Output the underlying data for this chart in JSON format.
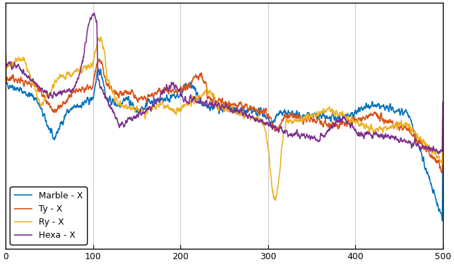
{
  "title": "",
  "xlabel": "",
  "ylabel": "",
  "background_color": "#ffffff",
  "axes_facecolor": "#ffffff",
  "grid_color": "#b0b0b0",
  "legend_labels": [
    "Marble - X",
    "Ty - X",
    "Ry - X",
    "Hexa - X"
  ],
  "line_colors": [
    "#0072BD",
    "#D95319",
    "#EDB120",
    "#7E2F8E"
  ],
  "line_width": 1.2,
  "legend_facecolor": "#ffffff",
  "legend_edgecolor": "#000000",
  "legend_text_color": "#000000",
  "spine_color": "#000000",
  "tick_color": "#000000",
  "xlim": [
    0,
    500
  ],
  "ylim_min": -160,
  "ylim_max": 20,
  "n_points": 2000
}
